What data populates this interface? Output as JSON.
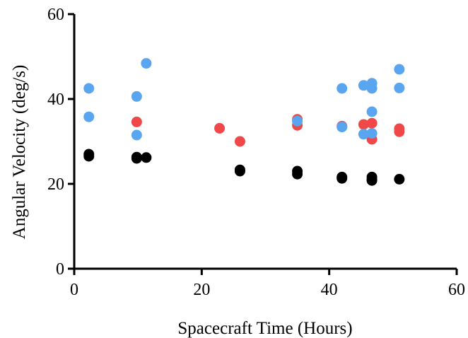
{
  "chart_data": {
    "type": "scatter",
    "title": "",
    "xlabel": "Spacecraft Time (Hours)",
    "ylabel": "Angular Velocity  (deg/s)",
    "xlim": [
      0,
      60
    ],
    "ylim": [
      0,
      60
    ],
    "xticks": [
      "0",
      "20",
      "40",
      "60"
    ],
    "yticks": [
      "0",
      "20",
      "40",
      "60"
    ],
    "grid": false,
    "legend": "none",
    "series": [
      {
        "color": "#000000",
        "points": [
          [
            2.3,
            27.0
          ],
          [
            2.3,
            26.5
          ],
          [
            9.8,
            26.3
          ],
          [
            9.8,
            26.0
          ],
          [
            11.3,
            26.2
          ],
          [
            26.0,
            23.3
          ],
          [
            26.0,
            23.0
          ],
          [
            35.0,
            23.0
          ],
          [
            35.0,
            22.3
          ],
          [
            42.0,
            21.6
          ],
          [
            42.0,
            21.3
          ],
          [
            46.7,
            21.6
          ],
          [
            46.7,
            21.0
          ],
          [
            46.7,
            20.8
          ],
          [
            51.0,
            21.1
          ]
        ]
      },
      {
        "color": "#f04848",
        "points": [
          [
            9.8,
            34.6
          ],
          [
            22.8,
            33.1
          ],
          [
            26.0,
            30.0
          ],
          [
            35.0,
            35.2
          ],
          [
            35.0,
            33.8
          ],
          [
            42.0,
            33.6
          ],
          [
            45.4,
            34.0
          ],
          [
            46.7,
            34.3
          ],
          [
            46.7,
            30.5
          ],
          [
            51.0,
            33.0
          ],
          [
            51.0,
            32.3
          ]
        ]
      },
      {
        "color": "#5aa5f0",
        "points": [
          [
            2.3,
            42.5
          ],
          [
            2.3,
            35.8
          ],
          [
            9.8,
            40.6
          ],
          [
            9.8,
            31.5
          ],
          [
            11.3,
            48.4
          ],
          [
            35.0,
            34.8
          ],
          [
            42.0,
            42.5
          ],
          [
            42.0,
            33.4
          ],
          [
            45.4,
            43.2
          ],
          [
            45.4,
            31.7
          ],
          [
            46.7,
            43.7
          ],
          [
            46.7,
            42.5
          ],
          [
            46.7,
            37.0
          ],
          [
            46.7,
            31.9
          ],
          [
            51.0,
            47.0
          ],
          [
            51.0,
            42.6
          ]
        ]
      }
    ]
  }
}
